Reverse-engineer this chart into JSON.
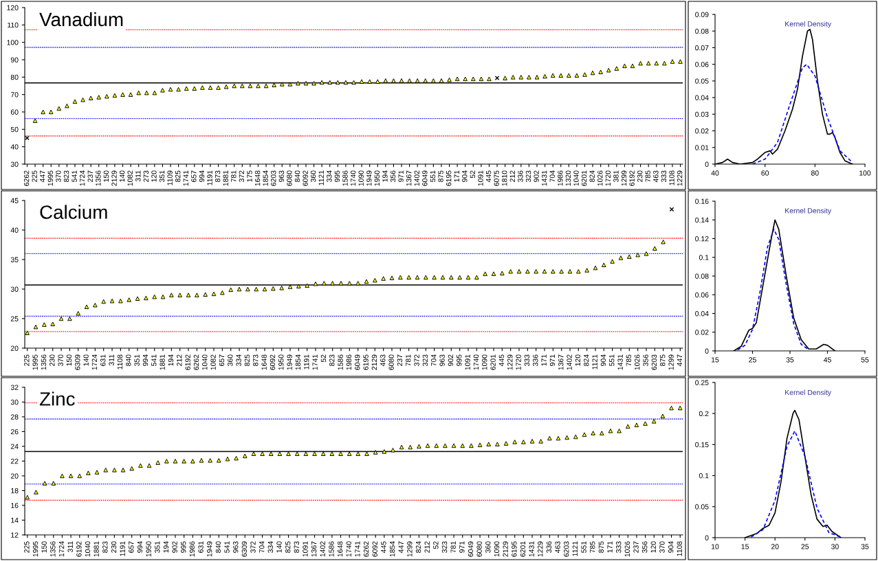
{
  "chart_data": [
    {
      "type": "scatter",
      "title": "Vanadium",
      "grid": false,
      "legend": false,
      "categories": [
        "6262",
        "225",
        "447",
        "1995",
        "370",
        "823",
        "541",
        "1724",
        "237",
        "1356",
        "150",
        "2129",
        "140",
        "1082",
        "311",
        "273",
        "120",
        "351",
        "1109",
        "825",
        "1741",
        "657",
        "994",
        "1191",
        "873",
        "1881",
        "781",
        "372",
        "175",
        "1648",
        "1854",
        "6203",
        "963",
        "6080",
        "840",
        "6092",
        "360",
        "1121",
        "334",
        "995",
        "1586",
        "1740",
        "1090",
        "1949",
        "1950",
        "194",
        "356",
        "971",
        "1367",
        "1402",
        "6049",
        "551",
        "875",
        "6195",
        "171",
        "904",
        "52",
        "1091",
        "445",
        "6075",
        "1810",
        "212",
        "336",
        "323",
        "902",
        "1431",
        "704",
        "1986",
        "1320",
        "1040",
        "6201",
        "824",
        "1026",
        "1720",
        "381",
        "1299",
        "6192",
        "230",
        "785",
        "463",
        "333",
        "1108",
        "1229"
      ],
      "series": [
        {
          "color": "#ffff00",
          "marker": "triangle",
          "values": [
            null,
            55,
            60,
            60,
            62,
            63.5,
            66,
            67,
            68,
            68.5,
            69,
            69.5,
            70,
            70,
            71,
            71,
            71,
            72.5,
            73,
            73,
            73.5,
            73.5,
            74,
            74,
            74,
            74.5,
            75,
            75,
            75,
            75,
            75,
            75.5,
            76,
            76,
            76.5,
            76.5,
            76.5,
            77,
            77,
            77,
            77,
            77,
            77.5,
            77.5,
            77.5,
            78,
            78,
            78,
            78,
            78,
            78,
            78,
            78,
            78.5,
            79,
            79,
            79,
            79,
            79,
            null,
            79.5,
            80,
            80,
            80,
            80,
            80.5,
            81,
            81,
            81,
            81,
            81.5,
            82.5,
            83,
            84,
            85,
            86.5,
            86.5,
            88,
            88,
            88,
            88,
            89,
            89
          ]
        },
        {
          "color": "#000000",
          "marker": "cross",
          "values": [
            45,
            null,
            null,
            null,
            null,
            null,
            null,
            null,
            null,
            null,
            null,
            null,
            null,
            null,
            null,
            null,
            null,
            null,
            null,
            null,
            null,
            null,
            null,
            null,
            null,
            null,
            null,
            null,
            null,
            null,
            null,
            null,
            null,
            null,
            null,
            null,
            null,
            null,
            null,
            null,
            null,
            null,
            null,
            null,
            null,
            null,
            null,
            null,
            null,
            null,
            null,
            null,
            null,
            null,
            null,
            null,
            null,
            null,
            null,
            79.5,
            null,
            null,
            null,
            null,
            null,
            null,
            null,
            null,
            null,
            null,
            null,
            null,
            null,
            null,
            null,
            null,
            null,
            null,
            null,
            null,
            null,
            null,
            null
          ]
        }
      ],
      "ylim": [
        30,
        120
      ],
      "yticks": [
        30,
        40,
        50,
        60,
        70,
        80,
        90,
        100,
        110,
        120
      ],
      "ref_lines": [
        {
          "axis": "y",
          "value": 107.2,
          "color": "#ff0000",
          "line_style": "dotted"
        },
        {
          "axis": "y",
          "value": 97.1,
          "color": "#0000ff",
          "line_style": "dotted"
        },
        {
          "axis": "y",
          "value": 76.7,
          "color": "#000000",
          "line_style": "solid"
        },
        {
          "axis": "y",
          "value": 56.2,
          "color": "#0000ff",
          "line_style": "dotted"
        },
        {
          "axis": "y",
          "value": 46.2,
          "color": "#ff0000",
          "line_style": "dotted"
        }
      ]
    },
    {
      "type": "line",
      "annotations": [
        "Kernel Density"
      ],
      "legend": false,
      "grid": false,
      "series": [
        {
          "color": "#000000",
          "line_style": "solid",
          "x": [
            40,
            43,
            45,
            47,
            50,
            55,
            57,
            60,
            62,
            63,
            65,
            68,
            71,
            73,
            75,
            77,
            78,
            79,
            81,
            83,
            85,
            86,
            87,
            88,
            90,
            92,
            95
          ],
          "values": [
            0,
            0.001,
            0.003,
            0.001,
            0,
            0.001,
            0.003,
            0.007,
            0.008,
            0.006,
            0.009,
            0.02,
            0.033,
            0.045,
            0.065,
            0.08,
            0.081,
            0.075,
            0.05,
            0.03,
            0.018,
            0.018,
            0.019,
            0.016,
            0.007,
            0.002,
            0
          ]
        },
        {
          "color": "#0000ff",
          "line_style": "dashed",
          "x": [
            55,
            60,
            65,
            70,
            75,
            76.7,
            80,
            85,
            90,
            95
          ],
          "values": [
            0,
            0.003,
            0.013,
            0.036,
            0.058,
            0.06,
            0.053,
            0.028,
            0.008,
            0.001
          ]
        }
      ],
      "xlim": [
        40,
        100
      ],
      "xticks": [
        40,
        60,
        80,
        100
      ],
      "ylim": [
        0,
        0.09
      ],
      "yticks": [
        0,
        0.01,
        0.02,
        0.03,
        0.04,
        0.05,
        0.06,
        0.07,
        0.08,
        0.09
      ]
    },
    {
      "type": "scatter",
      "title": "Calcium",
      "grid": false,
      "legend": false,
      "categories": [
        "225",
        "1995",
        "1356",
        "230",
        "370",
        "150",
        "6309",
        "140",
        "1724",
        "631",
        "311",
        "1108",
        "840",
        "351",
        "994",
        "541",
        "1881",
        "194",
        "212",
        "6192",
        "6262",
        "1040",
        "1082",
        "657",
        "360",
        "334",
        "825",
        "873",
        "1648",
        "6092",
        "1950",
        "1949",
        "1854",
        "1191",
        "1741",
        "52",
        "823",
        "1586",
        "1986",
        "6049",
        "6195",
        "2129",
        "463",
        "6080",
        "237",
        "781",
        "372",
        "323",
        "704",
        "963",
        "902",
        "995",
        "1091",
        "1740",
        "1090",
        "6201",
        "445",
        "1229",
        "1720",
        "333",
        "336",
        "171",
        "971",
        "1367",
        "1402",
        "120",
        "824",
        "1121",
        "904",
        "551",
        "1431",
        "785",
        "1026",
        "356",
        "6203",
        "875",
        "1299",
        "447"
      ],
      "series": [
        {
          "color": "#ffff00",
          "marker": "triangle",
          "values": [
            22.6,
            23.6,
            24.0,
            24.1,
            25.0,
            25.0,
            25.9,
            27.0,
            27.3,
            27.9,
            28.0,
            28.0,
            28.2,
            28.4,
            28.5,
            28.7,
            28.7,
            29.0,
            29.0,
            29.0,
            29.0,
            29.1,
            29.2,
            29.4,
            29.9,
            30.0,
            30.0,
            30.0,
            30.0,
            30.1,
            30.2,
            30.4,
            30.5,
            30.6,
            30.9,
            31.0,
            31.0,
            31.0,
            31.0,
            31.0,
            31.3,
            31.5,
            31.8,
            31.9,
            32.0,
            32.0,
            32.0,
            32.0,
            32.0,
            32.0,
            32.0,
            32.0,
            32.0,
            32.0,
            32.6,
            32.6,
            32.7,
            33.0,
            33.0,
            33.0,
            33.0,
            33.0,
            33.0,
            33.0,
            33.0,
            33.0,
            33.2,
            33.6,
            34.1,
            34.7,
            35.3,
            35.5,
            35.8,
            36.0,
            36.9,
            38.0,
            null,
            null
          ]
        },
        {
          "color": "#000000",
          "marker": "cross",
          "values": [
            null,
            null,
            null,
            null,
            null,
            null,
            null,
            null,
            null,
            null,
            null,
            null,
            null,
            null,
            null,
            null,
            null,
            null,
            null,
            null,
            null,
            null,
            null,
            null,
            null,
            null,
            null,
            null,
            null,
            null,
            null,
            null,
            null,
            null,
            null,
            null,
            null,
            null,
            null,
            null,
            null,
            null,
            null,
            null,
            null,
            null,
            null,
            null,
            null,
            null,
            null,
            null,
            null,
            null,
            null,
            null,
            null,
            null,
            null,
            null,
            null,
            null,
            null,
            null,
            null,
            null,
            null,
            null,
            null,
            null,
            null,
            null,
            null,
            null,
            null,
            null,
            43.5,
            null
          ]
        }
      ],
      "ylim": [
        20,
        45
      ],
      "yticks": [
        20,
        25,
        30,
        35,
        40,
        45
      ],
      "ref_lines": [
        {
          "axis": "y",
          "value": 38.6,
          "color": "#ff0000",
          "line_style": "dotted"
        },
        {
          "axis": "y",
          "value": 36.0,
          "color": "#0000ff",
          "line_style": "dotted"
        },
        {
          "axis": "y",
          "value": 30.7,
          "color": "#000000",
          "line_style": "solid"
        },
        {
          "axis": "y",
          "value": 25.4,
          "color": "#0000ff",
          "line_style": "dotted"
        },
        {
          "axis": "y",
          "value": 22.8,
          "color": "#ff0000",
          "line_style": "dotted"
        }
      ]
    },
    {
      "type": "line",
      "annotations": [
        "Kernel Density"
      ],
      "legend": false,
      "grid": false,
      "series": [
        {
          "color": "#000000",
          "line_style": "solid",
          "x": [
            20,
            22,
            24,
            25,
            26,
            28,
            30,
            31,
            32,
            34,
            36,
            38,
            40,
            42,
            44,
            45,
            47
          ],
          "values": [
            0,
            0.005,
            0.022,
            0.024,
            0.03,
            0.075,
            0.12,
            0.14,
            0.13,
            0.08,
            0.035,
            0.012,
            0.002,
            0.002,
            0.007,
            0.006,
            0
          ]
        },
        {
          "color": "#0000ff",
          "line_style": "dashed",
          "x": [
            21,
            23,
            25,
            27,
            29,
            30.7,
            32,
            34,
            36,
            38,
            40
          ],
          "values": [
            0.001,
            0.006,
            0.023,
            0.063,
            0.111,
            0.13,
            0.119,
            0.071,
            0.029,
            0.007,
            0.001
          ]
        }
      ],
      "xlim": [
        15,
        55
      ],
      "xticks": [
        15,
        25,
        35,
        45,
        55
      ],
      "ylim": [
        0,
        0.16
      ],
      "yticks": [
        0,
        0.02,
        0.04,
        0.06,
        0.08,
        0.1,
        0.12,
        0.14,
        0.16
      ]
    },
    {
      "type": "scatter",
      "title": "Zinc",
      "grid": false,
      "legend": false,
      "categories": [
        "225",
        "1995",
        "150",
        "1356",
        "1724",
        "311",
        "6192",
        "1040",
        "1881",
        "823",
        "230",
        "1191",
        "657",
        "994",
        "1950",
        "351",
        "194",
        "902",
        "995",
        "1986",
        "631",
        "1949",
        "840",
        "541",
        "963",
        "6309",
        "372",
        "704",
        "334",
        "140",
        "825",
        "873",
        "1091",
        "1367",
        "1402",
        "1586",
        "1648",
        "1740",
        "1741",
        "6262",
        "6092",
        "445",
        "1854",
        "447",
        "1299",
        "824",
        "212",
        "52",
        "323",
        "781",
        "971",
        "6049",
        "6080",
        "360",
        "1090",
        "2129",
        "6195",
        "6201",
        "1431",
        "1229",
        "336",
        "463",
        "6203",
        "1121",
        "551",
        "785",
        "875",
        "171",
        "333",
        "1026",
        "237",
        "356",
        "120",
        "370",
        "904",
        "1108"
      ],
      "series": [
        {
          "color": "#ffff00",
          "marker": "triangle",
          "values": [
            17.1,
            17.8,
            19.0,
            19.0,
            20.0,
            20.0,
            20.0,
            20.4,
            20.5,
            20.8,
            20.8,
            20.8,
            21.0,
            21.4,
            21.4,
            21.8,
            22.0,
            22.0,
            22.0,
            22.0,
            22.1,
            22.1,
            22.1,
            22.3,
            22.4,
            22.7,
            23.0,
            23.0,
            23.0,
            23.0,
            23.0,
            23.0,
            23.0,
            23.0,
            23.0,
            23.0,
            23.0,
            23.0,
            23.0,
            23.0,
            23.2,
            23.3,
            23.5,
            23.9,
            23.9,
            24.0,
            24.1,
            24.1,
            24.1,
            24.1,
            24.1,
            24.1,
            24.2,
            24.3,
            24.3,
            24.4,
            24.6,
            24.6,
            24.7,
            24.7,
            25.1,
            25.1,
            25.2,
            25.3,
            25.6,
            25.8,
            25.8,
            26.1,
            26.1,
            26.7,
            26.9,
            27.1,
            27.4,
            28.1,
            29.2,
            29.2
          ]
        }
      ],
      "ylim": [
        12,
        32
      ],
      "yticks": [
        12,
        14,
        16,
        18,
        20,
        22,
        24,
        26,
        28,
        30,
        32
      ],
      "ref_lines": [
        {
          "axis": "y",
          "value": 29.9,
          "color": "#ff0000",
          "line_style": "dotted"
        },
        {
          "axis": "y",
          "value": 27.7,
          "color": "#0000ff",
          "line_style": "dotted"
        },
        {
          "axis": "y",
          "value": 23.3,
          "color": "#000000",
          "line_style": "solid"
        },
        {
          "axis": "y",
          "value": 18.9,
          "color": "#0000ff",
          "line_style": "dotted"
        },
        {
          "axis": "y",
          "value": 16.7,
          "color": "#ff0000",
          "line_style": "dotted"
        }
      ]
    },
    {
      "type": "line",
      "annotations": [
        "Kernel Density"
      ],
      "legend": false,
      "grid": false,
      "series": [
        {
          "color": "#000000",
          "line_style": "solid",
          "x": [
            15,
            17,
            18,
            19,
            20,
            21,
            22,
            23,
            23.3,
            24,
            25,
            26,
            27,
            28,
            28.7,
            29.5,
            31
          ],
          "values": [
            0,
            0.007,
            0.015,
            0.02,
            0.04,
            0.09,
            0.16,
            0.2,
            0.205,
            0.19,
            0.13,
            0.07,
            0.03,
            0.018,
            0.02,
            0.01,
            0
          ]
        },
        {
          "color": "#0000ff",
          "line_style": "dashed",
          "x": [
            16,
            18,
            20,
            22,
            23.3,
            25,
            27,
            29,
            31
          ],
          "values": [
            0.001,
            0.013,
            0.06,
            0.147,
            0.172,
            0.131,
            0.048,
            0.008,
            0.001
          ]
        }
      ],
      "xlim": [
        10,
        35
      ],
      "xticks": [
        10,
        15,
        20,
        25,
        30,
        35
      ],
      "ylim": [
        0,
        0.25
      ],
      "yticks": [
        0,
        0.05,
        0.1,
        0.15,
        0.2,
        0.25
      ]
    }
  ]
}
